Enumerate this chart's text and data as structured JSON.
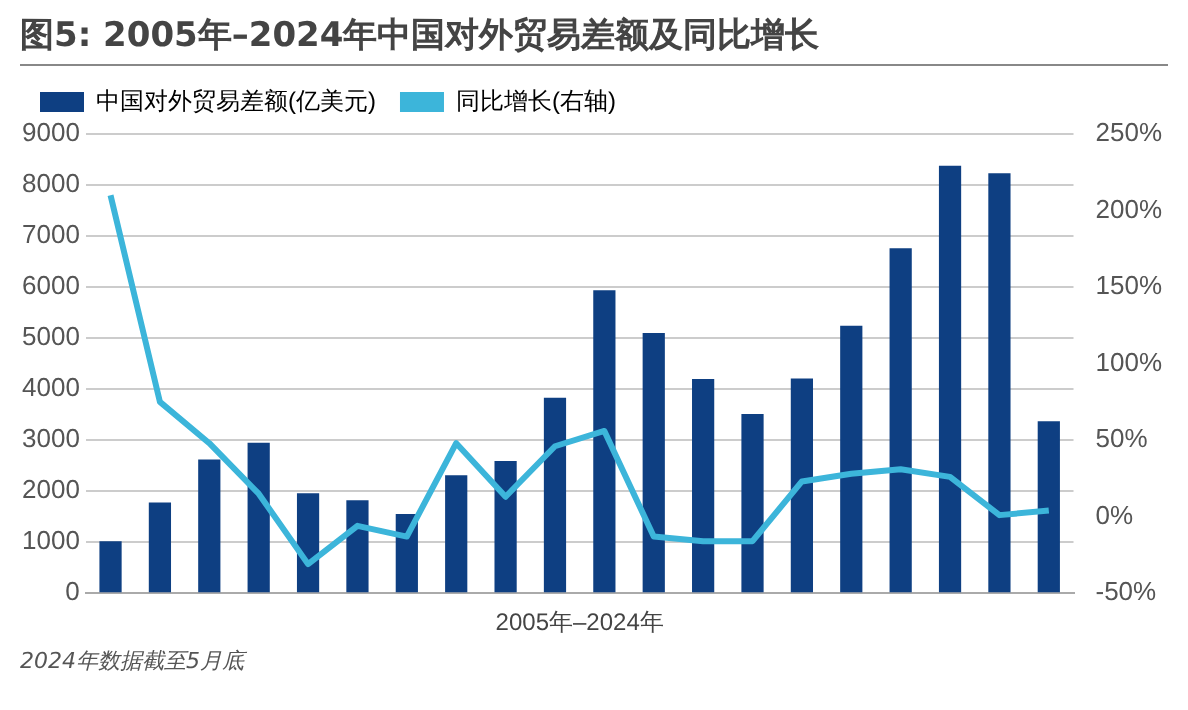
{
  "chart_data": {
    "type": "bar",
    "title": "图5: 2005年–2024年中国对外贸易差额及同比增长",
    "xlabel": "2005年–2024年",
    "categories": [
      null,
      null,
      null,
      null,
      null,
      null,
      null,
      null,
      null,
      null,
      null,
      null,
      null,
      null,
      null,
      null,
      null,
      null,
      null,
      null
    ],
    "series": [
      {
        "name": "中国对外贸易差额(亿美元)",
        "color": "#0e3f82",
        "values": [
          1020,
          1780,
          2620,
          2950,
          1960,
          1820,
          1550,
          2310,
          2590,
          3830,
          5940,
          5100,
          4200,
          3510,
          4210,
          5240,
          6760,
          8380,
          8230,
          3370
        ]
      },
      {
        "name": "同比增长(右轴)",
        "type": "line",
        "axis": "y2",
        "color": "#3cb5da",
        "values": [
          210,
          75,
          48,
          15,
          -31,
          -6,
          -13,
          48,
          13,
          46,
          56,
          -13,
          -16,
          -16,
          23,
          28,
          31,
          26,
          1,
          4
        ]
      }
    ],
    "ylim": [
      0,
      9000
    ],
    "yticks": [
      0,
      1000,
      2000,
      3000,
      4000,
      5000,
      6000,
      7000,
      8000,
      9000
    ],
    "y2lim": [
      -50,
      250
    ],
    "y2ticks": [
      {
        "value": -50,
        "label": "-50%"
      },
      {
        "value": 0,
        "label": "0%"
      },
      {
        "value": 50,
        "label": "50%"
      },
      {
        "value": 100,
        "label": "100%"
      },
      {
        "value": 150,
        "label": "150%"
      },
      {
        "value": 200,
        "label": "200%"
      },
      {
        "value": 250,
        "label": "250%"
      }
    ],
    "grid": "y",
    "legend": "top left",
    "marker": "none",
    "line_style": "solid",
    "annotations": [
      "2024年数据截至5月底"
    ]
  }
}
